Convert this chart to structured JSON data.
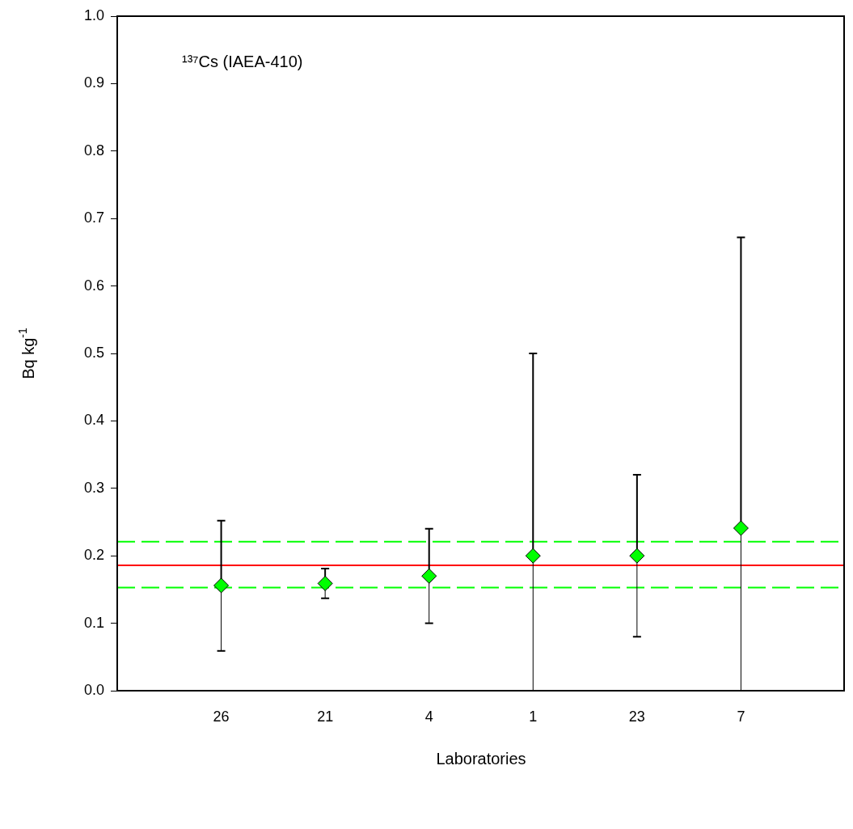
{
  "chart_data": {
    "type": "scatter",
    "categories": [
      "26",
      "21",
      "4",
      "1",
      "23",
      "7"
    ],
    "values": [
      0.156,
      0.159,
      0.17,
      0.2,
      0.2,
      0.241
    ],
    "errors": [
      [
        0.059,
        0.252
      ],
      [
        0.137,
        0.181
      ],
      [
        0.1,
        0.24
      ],
      [
        0,
        0.5
      ],
      [
        0.08,
        0.32
      ],
      [
        0,
        0.672
      ]
    ],
    "color": "#00ff00",
    "marker": "diamond",
    "xlabel": "Laboratories",
    "ylabel": "Bq kg$^{-1}$",
    "annotations": [
      "¹³⁷Cs (IAEA-410)"
    ],
    "ylim": [
      0,
      1
    ],
    "yticks": [
      {
        "value": 0,
        "label": "0.0"
      },
      0.1,
      0.2,
      0.3,
      0.4,
      0.5,
      0.6,
      0.7,
      0.8,
      0.9,
      {
        "value": 1,
        "label": "1.0"
      }
    ],
    "ref_lines": [
      {
        "axis": "y",
        "value": 0.186,
        "color": "#ff0000",
        "line_style": "solid"
      },
      {
        "axis": "y",
        "value": 0.221,
        "color": "#00ff00",
        "line_style": "dashed"
      },
      {
        "axis": "y",
        "value": 0.153,
        "color": "#00ff00",
        "line_style": "dashed"
      }
    ],
    "grid": false,
    "legend": false
  }
}
